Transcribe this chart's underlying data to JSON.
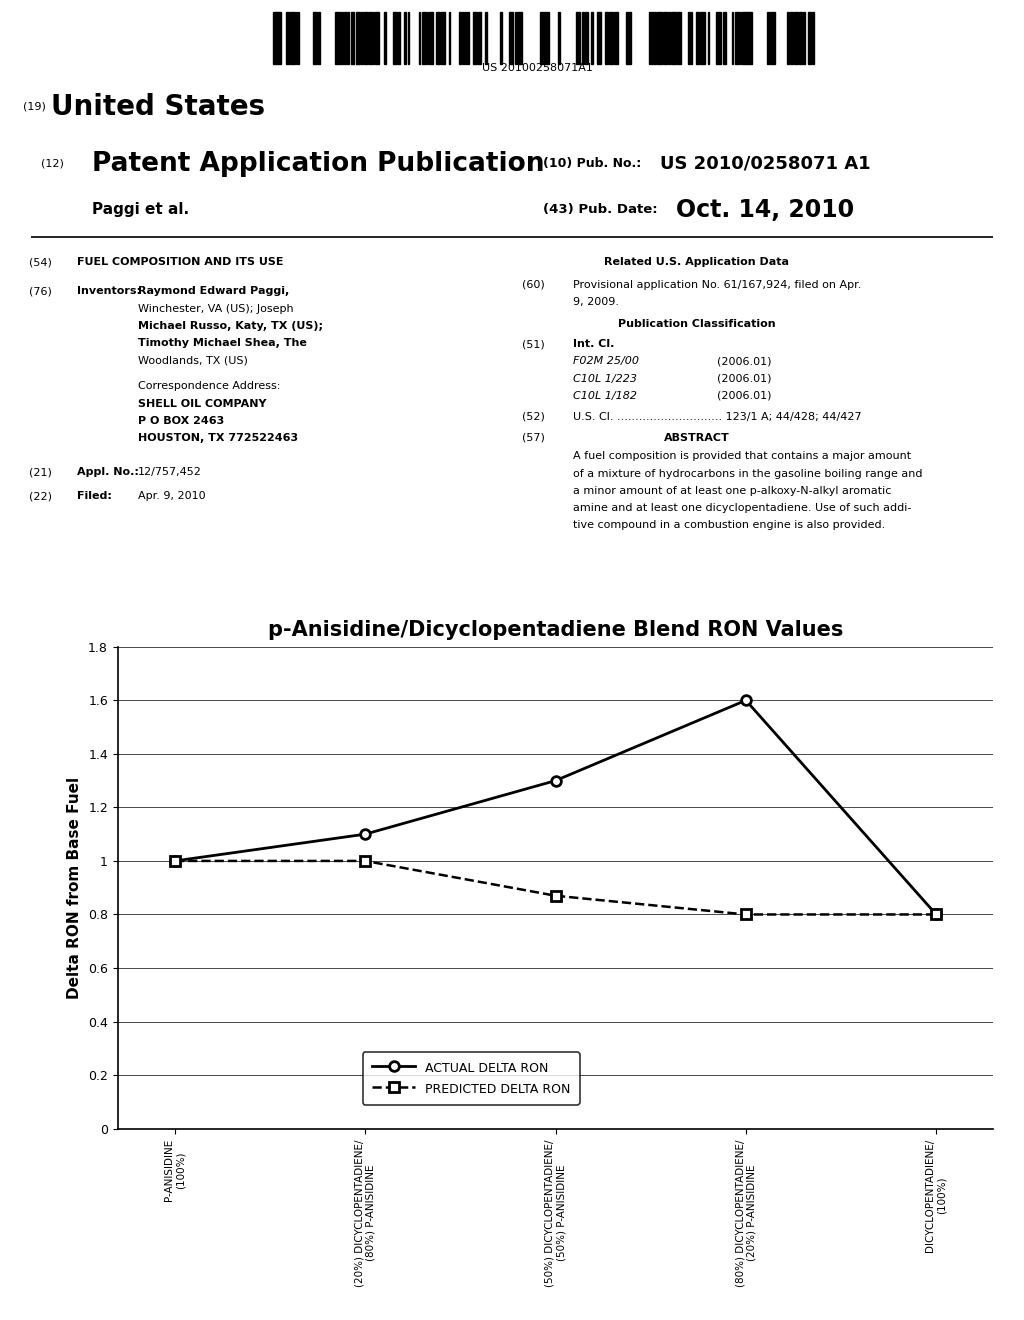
{
  "title": "p-Anisidine/Dicyclopentadiene Blend RON Values",
  "ylabel": "Delta RON from Base Fuel",
  "actual_values": [
    1.0,
    1.1,
    1.3,
    1.6,
    0.8
  ],
  "predicted_values": [
    1.0,
    1.0,
    0.87,
    0.8,
    0.8
  ],
  "ylim": [
    0,
    1.8
  ],
  "yticks": [
    0,
    0.2,
    0.4,
    0.6,
    0.8,
    1.0,
    1.2,
    1.4,
    1.6,
    1.8
  ],
  "legend_actual": "ACTUAL DELTA RON",
  "legend_predicted": "PREDICTED DELTA RON",
  "bg_color": "#ffffff",
  "title_fontsize": 15,
  "axis_label_fontsize": 11,
  "tick_fontsize": 8,
  "legend_fontsize": 9,
  "patent_number": "US 20100258071A1",
  "xlabels_line1": [
    "P-ANISIDINE",
    "(20%) DICYCLOPENTADIENE/",
    "(50%) DICYCLOPENTADIENE/",
    "(80%) DICYCLOPENTADIENE/",
    "DICYCLOPENTADIENE/"
  ],
  "xlabels_line2": [
    "(100%)",
    "(80%) P-ANISIDINE",
    "(50%) P-ANISIDINE",
    "(20%) P-ANISIDINE",
    "(100%)"
  ]
}
